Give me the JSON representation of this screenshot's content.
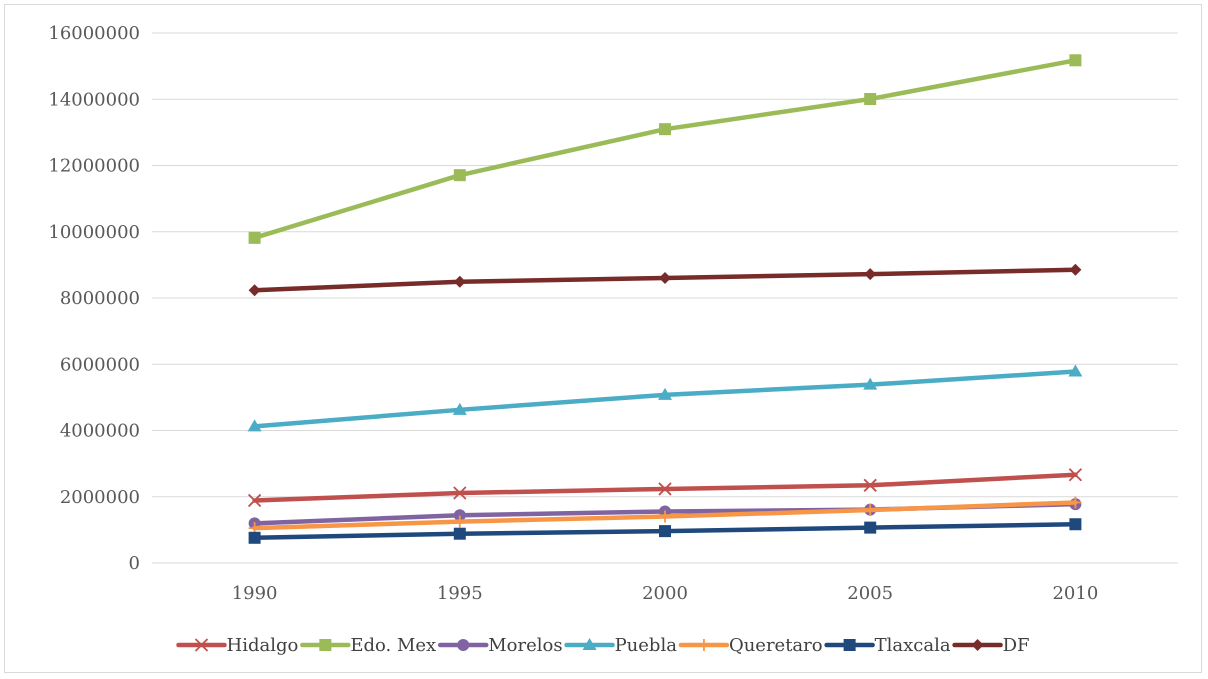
{
  "chart_data": {
    "type": "line",
    "title": "",
    "xlabel": "",
    "ylabel": "",
    "categories": [
      "1990",
      "1995",
      "2000",
      "2005",
      "2010"
    ],
    "ylim": [
      0,
      16000000
    ],
    "yticks": [
      0,
      2000000,
      4000000,
      6000000,
      8000000,
      10000000,
      12000000,
      14000000,
      16000000
    ],
    "ytick_labels": [
      "0",
      "2000000",
      "4000000",
      "6000000",
      "8000000",
      "10000000",
      "12000000",
      "14000000",
      "16000000"
    ],
    "grid": true,
    "legend_position": "bottom",
    "series": [
      {
        "name": "Hidalgo",
        "color": "#c0504d",
        "marker": "x",
        "values": [
          1888366,
          2112473,
          2235591,
          2345514,
          2665018
        ]
      },
      {
        "name": "Edo. Mex",
        "color": "#9bbb59",
        "marker": "square",
        "values": [
          9815795,
          11707964,
          13096686,
          14007495,
          15175862
        ]
      },
      {
        "name": "Morelos",
        "color": "#8064a2",
        "marker": "circle",
        "values": [
          1195059,
          1442662,
          1555296,
          1612899,
          1777227
        ]
      },
      {
        "name": "Puebla",
        "color": "#4bacc6",
        "marker": "triangle",
        "values": [
          4126101,
          4624365,
          5076686,
          5383133,
          5779829
        ]
      },
      {
        "name": "Queretaro",
        "color": "#f79646",
        "marker": "plus",
        "values": [
          1051235,
          1250476,
          1404306,
          1598139,
          1827937
        ]
      },
      {
        "name": "Tlaxcala",
        "color": "#1f497d",
        "marker": "square",
        "values": [
          761277,
          883924,
          962646,
          1068207,
          1169936
        ]
      },
      {
        "name": "DF",
        "color": "#772c2a",
        "marker": "diamond",
        "values": [
          8235744,
          8489007,
          8605239,
          8720916,
          8851080
        ]
      }
    ]
  }
}
